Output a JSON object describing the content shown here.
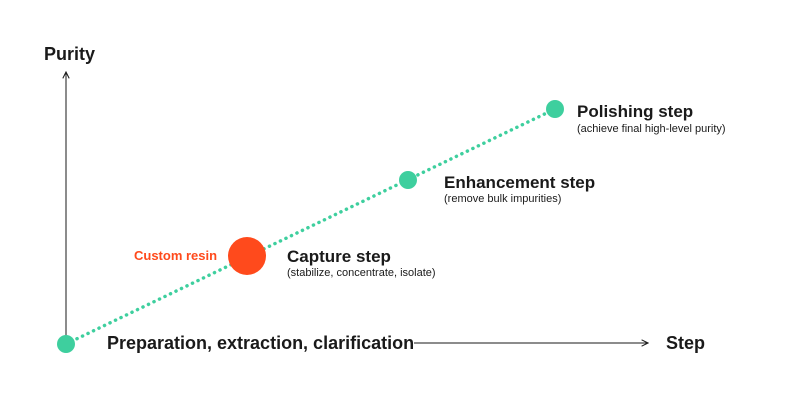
{
  "axes": {
    "y_label": "Purity",
    "x_label": "Step",
    "x_origin_label": "Preparation, extraction, clarification"
  },
  "steps": [
    {
      "title": "Capture step",
      "subtitle": "(stabilize, concentrate, isolate)"
    },
    {
      "title": "Enhancement step",
      "subtitle": "(remove bulk impurities)"
    },
    {
      "title": "Polishing step",
      "subtitle": "(achieve final high-level purity)"
    }
  ],
  "highlight": {
    "label": "Custom resin"
  },
  "colors": {
    "node": "#3ecf9e",
    "highlight": "#ff4a1c",
    "axis": "#1a1a1a",
    "text": "#1a1a1a"
  }
}
